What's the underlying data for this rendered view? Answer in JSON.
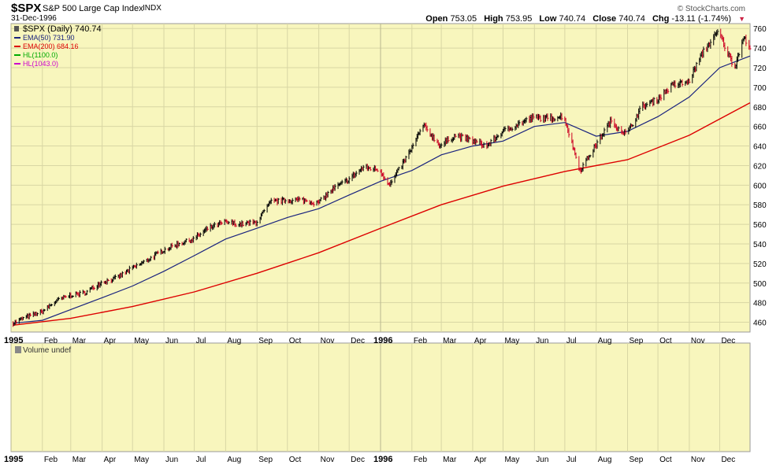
{
  "header": {
    "symbol": "$SPX",
    "name": "S&P 500 Large Cap Index",
    "exchange": "INDX",
    "date": "31-Dec-1996",
    "watermark": "© StockCharts.com",
    "open_label": "Open",
    "open_value": "753.05",
    "high_label": "High",
    "high_value": "753.95",
    "low_label": "Low",
    "low_value": "740.74",
    "close_label": "Close",
    "close_value": "740.74",
    "chg_label": "Chg",
    "chg_value": "-13.11 (-1.74%)",
    "chg_icon": "down-triangle-icon"
  },
  "legend": [
    {
      "label": "$SPX (Daily) 740.74",
      "color": "#000000"
    },
    {
      "label": "EMA(50) 731.90",
      "color": "#1a237e"
    },
    {
      "label": "EMA(200) 684.16",
      "color": "#dd0000"
    },
    {
      "label": "HL(1100.0)",
      "color": "#00aa00"
    },
    {
      "label": "HL(1043.0)",
      "color": "#cc00cc"
    }
  ],
  "volume_panel": {
    "label": "Volume undef"
  },
  "colors": {
    "panel_bg": "#f8f6bd",
    "grid": "#d8d6a4",
    "up_bar": "#000000",
    "down_bar": "#cc0022",
    "ema50": "#1a237e",
    "ema200": "#dd0000"
  },
  "chart_data": [
    {
      "type": "line",
      "title": "$SPX (Daily) 740.74",
      "y_ticks": [
        460,
        480,
        500,
        520,
        540,
        560,
        580,
        600,
        620,
        640,
        660,
        680,
        700,
        720,
        740,
        760
      ],
      "ylim": [
        450,
        765
      ],
      "x_range": [
        "1995-01-01",
        "1996-12-31"
      ],
      "x_tick_labels": [
        {
          "date": "1995-01-01",
          "label": "1995"
        },
        {
          "date": "1995-02-01",
          "label": "Feb"
        },
        {
          "date": "1995-03-01",
          "label": "Mar"
        },
        {
          "date": "1995-04-01",
          "label": "Apr"
        },
        {
          "date": "1995-05-01",
          "label": "May"
        },
        {
          "date": "1995-06-01",
          "label": "Jun"
        },
        {
          "date": "1995-07-01",
          "label": "Jul"
        },
        {
          "date": "1995-08-01",
          "label": "Aug"
        },
        {
          "date": "1995-09-01",
          "label": "Sep"
        },
        {
          "date": "1995-10-01",
          "label": "Oct"
        },
        {
          "date": "1995-11-01",
          "label": "Nov"
        },
        {
          "date": "1995-12-01",
          "label": "Dec"
        },
        {
          "date": "1996-01-01",
          "label": "1996"
        },
        {
          "date": "1996-02-01",
          "label": "Feb"
        },
        {
          "date": "1996-03-01",
          "label": "Mar"
        },
        {
          "date": "1996-04-01",
          "label": "Apr"
        },
        {
          "date": "1996-05-01",
          "label": "May"
        },
        {
          "date": "1996-06-01",
          "label": "Jun"
        },
        {
          "date": "1996-07-01",
          "label": "Jul"
        },
        {
          "date": "1996-08-01",
          "label": "Aug"
        },
        {
          "date": "1996-09-01",
          "label": "Sep"
        },
        {
          "date": "1996-10-01",
          "label": "Oct"
        },
        {
          "date": "1996-11-01",
          "label": "Nov"
        },
        {
          "date": "1996-12-01",
          "label": "Dec"
        }
      ],
      "grid": true,
      "series": [
        {
          "name": "$SPX (Daily) 740.74",
          "points": [
            [
              "1995-01-03",
              459.1
            ],
            [
              "1995-01-15",
              465
            ],
            [
              "1995-01-31",
              470.4
            ],
            [
              "1995-02-15",
              482
            ],
            [
              "1995-02-28",
              487.4
            ],
            [
              "1995-03-15",
              490
            ],
            [
              "1995-03-31",
              500.7
            ],
            [
              "1995-04-15",
              505
            ],
            [
              "1995-04-30",
              514.7
            ],
            [
              "1995-05-15",
              523
            ],
            [
              "1995-05-31",
              533.4
            ],
            [
              "1995-06-15",
              540
            ],
            [
              "1995-06-30",
              544.8
            ],
            [
              "1995-07-15",
              556
            ],
            [
              "1995-07-31",
              562.1
            ],
            [
              "1995-08-15",
              560
            ],
            [
              "1995-08-31",
              561.9
            ],
            [
              "1995-09-15",
              583
            ],
            [
              "1995-09-30",
              584.4
            ],
            [
              "1995-10-15",
              585
            ],
            [
              "1995-10-31",
              581.5
            ],
            [
              "1995-11-15",
              596
            ],
            [
              "1995-11-30",
              605.4
            ],
            [
              "1995-12-15",
              618
            ],
            [
              "1995-12-31",
              615.9
            ],
            [
              "1996-01-10",
              600
            ],
            [
              "1996-01-31",
              636
            ],
            [
              "1996-02-12",
              661
            ],
            [
              "1996-02-29",
              640.4
            ],
            [
              "1996-03-15",
              651
            ],
            [
              "1996-03-31",
              645.5
            ],
            [
              "1996-04-15",
              640
            ],
            [
              "1996-04-30",
              654.2
            ],
            [
              "1996-05-15",
              662
            ],
            [
              "1996-05-31",
              669.1
            ],
            [
              "1996-06-15",
              668
            ],
            [
              "1996-06-30",
              670.6
            ],
            [
              "1996-07-16",
              615
            ],
            [
              "1996-07-31",
              639.9
            ],
            [
              "1996-08-15",
              665
            ],
            [
              "1996-08-31",
              651.9
            ],
            [
              "1996-09-15",
              680
            ],
            [
              "1996-09-30",
              687.3
            ],
            [
              "1996-10-15",
              702
            ],
            [
              "1996-10-31",
              705.3
            ],
            [
              "1996-11-15",
              737
            ],
            [
              "1996-11-30",
              757
            ],
            [
              "1996-12-10",
              732
            ],
            [
              "1996-12-16",
              721
            ],
            [
              "1996-12-24",
              751
            ],
            [
              "1996-12-31",
              740.7
            ]
          ]
        },
        {
          "name": "EMA(50) 731.90",
          "points": [
            [
              "1995-01-03",
              459
            ],
            [
              "1995-02-01",
              462
            ],
            [
              "1995-03-01",
              473
            ],
            [
              "1995-04-01",
              485
            ],
            [
              "1995-05-01",
              497
            ],
            [
              "1995-06-01",
              512
            ],
            [
              "1995-07-01",
              528
            ],
            [
              "1995-08-01",
              545
            ],
            [
              "1995-09-01",
              556
            ],
            [
              "1995-10-01",
              567
            ],
            [
              "1995-11-01",
              576
            ],
            [
              "1995-12-01",
              590
            ],
            [
              "1996-01-01",
              604
            ],
            [
              "1996-02-01",
              615
            ],
            [
              "1996-03-01",
              631
            ],
            [
              "1996-04-01",
              640
            ],
            [
              "1996-05-01",
              645
            ],
            [
              "1996-06-01",
              660
            ],
            [
              "1996-07-01",
              664
            ],
            [
              "1996-08-01",
              650
            ],
            [
              "1996-09-01",
              655
            ],
            [
              "1996-10-01",
              670
            ],
            [
              "1996-11-01",
              690
            ],
            [
              "1996-12-01",
              720
            ],
            [
              "1996-12-31",
              731.9
            ]
          ]
        },
        {
          "name": "EMA(200) 684.16",
          "points": [
            [
              "1995-01-03",
              457
            ],
            [
              "1995-03-01",
              464
            ],
            [
              "1995-05-01",
              476
            ],
            [
              "1995-07-01",
              491
            ],
            [
              "1995-09-01",
              510
            ],
            [
              "1995-11-01",
              531
            ],
            [
              "1996-01-01",
              556
            ],
            [
              "1996-03-01",
              580
            ],
            [
              "1996-05-01",
              599
            ],
            [
              "1996-07-01",
              614
            ],
            [
              "1996-09-01",
              626
            ],
            [
              "1996-11-01",
              651
            ],
            [
              "1996-12-31",
              684.16
            ]
          ]
        }
      ]
    },
    {
      "type": "bar",
      "title": "Volume undef",
      "series": []
    }
  ]
}
